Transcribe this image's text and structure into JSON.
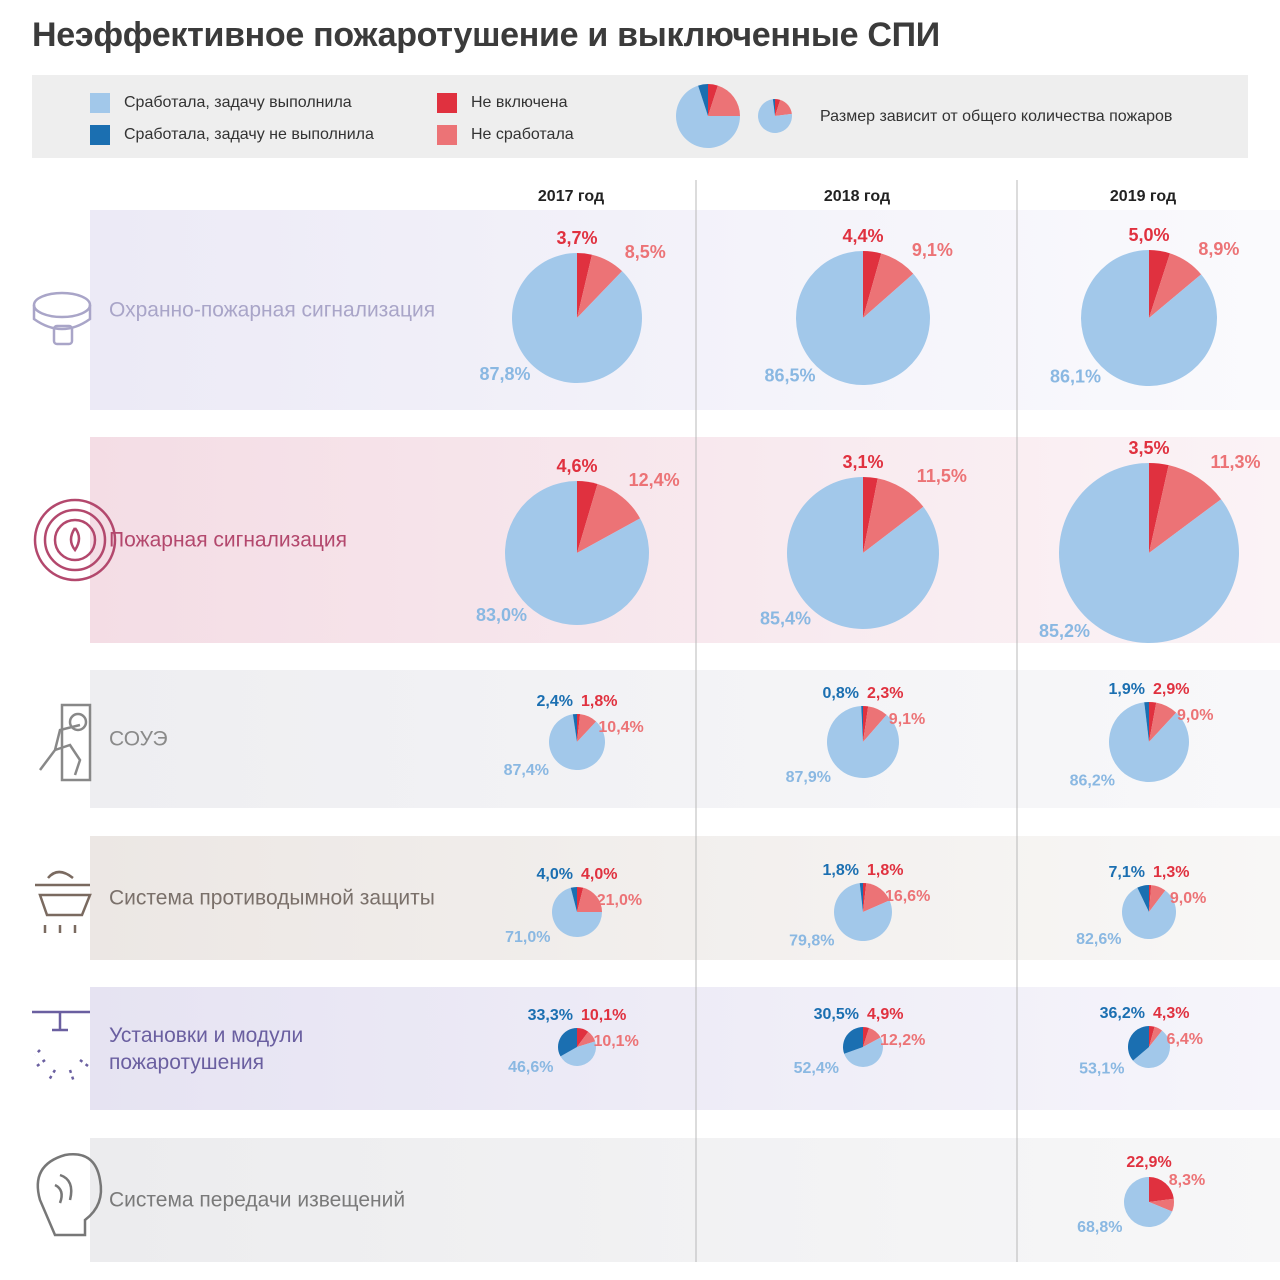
{
  "title": "Неэффективное пожаротушение и выключенные СПИ",
  "legend": {
    "items": [
      {
        "name": "Сработала, задачу выполнила",
        "color": "#a2c8ea"
      },
      {
        "name": "Сработала, задачу не выполнила",
        "color": "#1b6fb1"
      },
      {
        "name": "Не включена",
        "color": "#e0313f"
      },
      {
        "name": "Не сработала",
        "color": "#ec7376"
      }
    ],
    "size_note": "Размер зависит от общего количества пожаров"
  },
  "columns": [
    "2017 год",
    "2018 год",
    "2019 год"
  ],
  "rows": [
    {
      "label": "Охранно-пожарная сигнализация",
      "charts": [
        {
          "type": "pie",
          "values": [
            87.8,
            null,
            3.7,
            8.5
          ],
          "value_labels": [
            "87,8%",
            null,
            "3,7%",
            "8,5%"
          ]
        },
        {
          "type": "pie",
          "values": [
            86.5,
            null,
            4.4,
            9.1
          ],
          "value_labels": [
            "86,5%",
            null,
            "4,4%",
            "9,1%"
          ]
        },
        {
          "type": "pie",
          "values": [
            86.1,
            null,
            5.0,
            8.9
          ],
          "value_labels": [
            "86,1%",
            null,
            "5,0%",
            "8,9%"
          ]
        }
      ]
    },
    {
      "label": "Пожарная сигнализация",
      "charts": [
        {
          "type": "pie",
          "values": [
            83.0,
            null,
            4.6,
            12.4
          ],
          "value_labels": [
            "83,0%",
            null,
            "4,6%",
            "12,4%"
          ]
        },
        {
          "type": "pie",
          "values": [
            85.4,
            null,
            3.1,
            11.5
          ],
          "value_labels": [
            "85,4%",
            null,
            "3,1%",
            "11,5%"
          ]
        },
        {
          "type": "pie",
          "values": [
            85.2,
            null,
            3.5,
            11.3
          ],
          "value_labels": [
            "85,2%",
            null,
            "3,5%",
            "11,3%"
          ]
        }
      ]
    },
    {
      "label": "СОУЭ",
      "charts": [
        {
          "type": "pie",
          "values": [
            87.4,
            2.4,
            1.8,
            10.4
          ],
          "value_labels": [
            "87,4%",
            "2,4%",
            "1,8%",
            "10,4%"
          ]
        },
        {
          "type": "pie",
          "values": [
            87.9,
            0.8,
            2.3,
            9.1
          ],
          "value_labels": [
            "87,9%",
            "0,8%",
            "2,3%",
            "9,1%"
          ]
        },
        {
          "type": "pie",
          "values": [
            86.2,
            1.9,
            2.9,
            9.0
          ],
          "value_labels": [
            "86,2%",
            "1,9%",
            "2,9%",
            "9,0%"
          ]
        }
      ]
    },
    {
      "label": "Система противодымной защиты",
      "charts": [
        {
          "type": "pie",
          "values": [
            71.0,
            4.0,
            4.0,
            21.0
          ],
          "value_labels": [
            "71,0%",
            "4,0%",
            "4,0%",
            "21,0%"
          ]
        },
        {
          "type": "pie",
          "values": [
            79.8,
            1.8,
            1.8,
            16.6
          ],
          "value_labels": [
            "79,8%",
            "1,8%",
            "1,8%",
            "16,6%"
          ]
        },
        {
          "type": "pie",
          "values": [
            82.6,
            7.1,
            1.3,
            9.0
          ],
          "value_labels": [
            "82,6%",
            "7,1%",
            "1,3%",
            "9,0%"
          ]
        }
      ]
    },
    {
      "label": "Установки и модули пожаротушения",
      "charts": [
        {
          "type": "pie",
          "values": [
            46.6,
            33.3,
            10.1,
            10.1
          ],
          "value_labels": [
            "46,6%",
            "33,3%",
            "10,1%",
            "10,1%"
          ]
        },
        {
          "type": "pie",
          "values": [
            52.4,
            30.5,
            4.9,
            12.2
          ],
          "value_labels": [
            "52,4%",
            "30,5%",
            "4,9%",
            "12,2%"
          ]
        },
        {
          "type": "pie",
          "values": [
            53.1,
            36.2,
            4.3,
            6.4
          ],
          "value_labels": [
            "53,1%",
            "36,2%",
            "4,3%",
            "6,4%"
          ]
        }
      ]
    },
    {
      "label": "Система передачи извещений",
      "charts": [
        null,
        null,
        {
          "type": "pie",
          "values": [
            68.8,
            null,
            22.9,
            8.3
          ],
          "value_labels": [
            "68,8%",
            null,
            "22,9%",
            "8,3%"
          ]
        }
      ]
    }
  ]
}
